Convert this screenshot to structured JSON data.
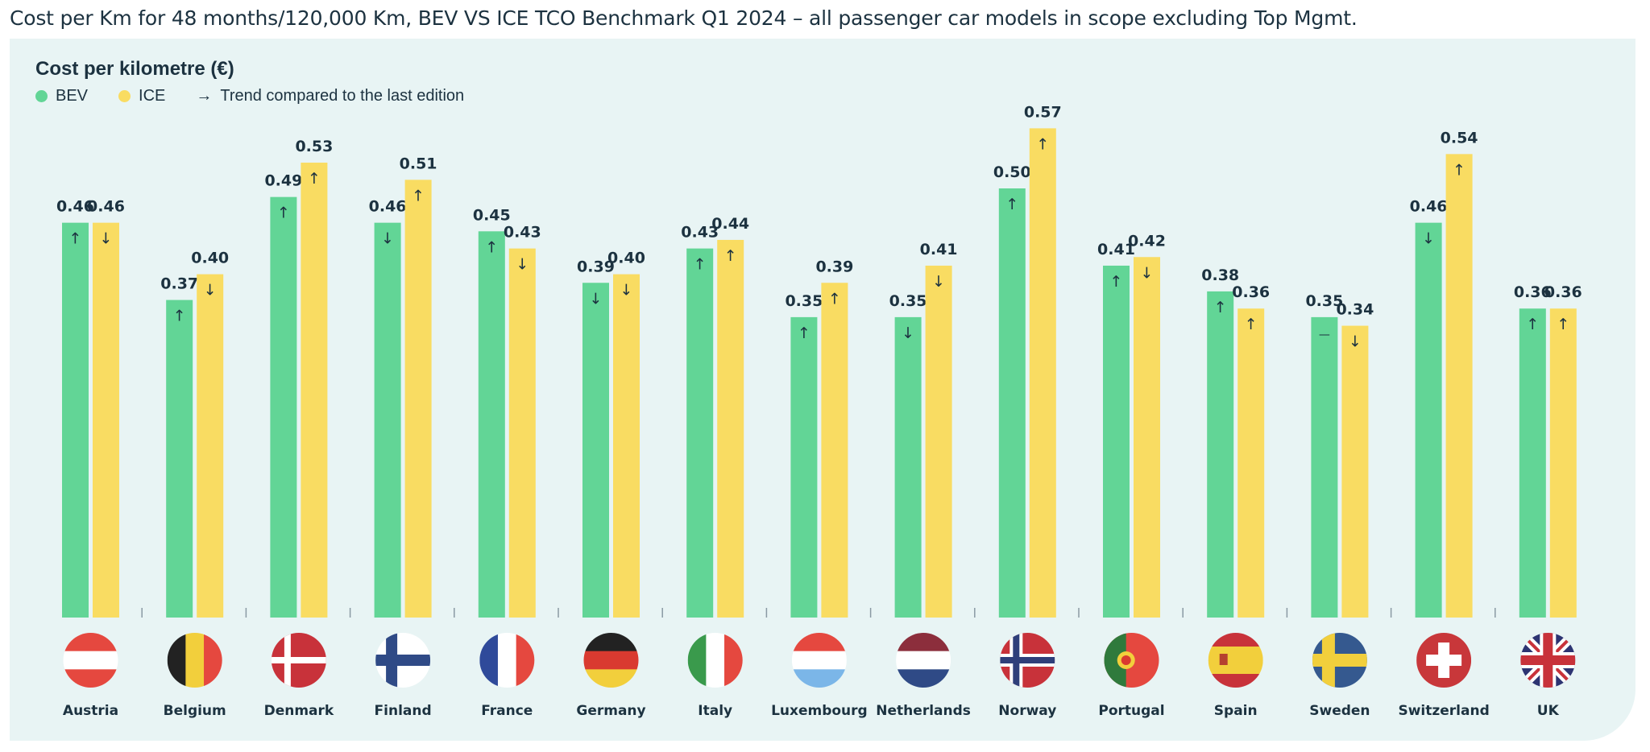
{
  "page_title": "Cost per Km for 48 months/120,000 Km, BEV VS ICE TCO Benchmark Q1 2024 – all passenger car models in scope excluding Top Mgmt.",
  "chart_data": {
    "type": "bar",
    "title": "Cost per kilometre (€)",
    "legend": {
      "placement": "top-left",
      "trend_note_icon": "arrow-right-icon",
      "trend_note": "Trend compared to the last edition"
    },
    "colors": {
      "BEV": "#62d596",
      "ICE": "#f9dc62",
      "text": "#1c3240",
      "background": "#e8f4f4"
    },
    "categories": [
      "Austria",
      "Belgium",
      "Denmark",
      "Finland",
      "France",
      "Germany",
      "Italy",
      "Luxembourg",
      "Netherlands",
      "Norway",
      "Portugal",
      "Spain",
      "Sweden",
      "Switzerland",
      "UK"
    ],
    "series": [
      {
        "name": "BEV",
        "values": [
          0.46,
          0.37,
          0.49,
          0.46,
          0.45,
          0.39,
          0.43,
          0.35,
          0.35,
          0.5,
          0.41,
          0.38,
          0.35,
          0.46,
          0.36
        ],
        "labels": [
          "0.46",
          "0.37",
          "0.49",
          "0.46",
          "0.45",
          "0.39",
          "0.43",
          "0.35",
          "0.35",
          "0.50",
          "0.41",
          "0.38",
          "0.35",
          "0.46",
          "0.36"
        ],
        "trend": [
          "up",
          "up",
          "up",
          "down",
          "up",
          "down",
          "up",
          "up",
          "down",
          "up",
          "up",
          "up",
          "flat",
          "down",
          "up"
        ]
      },
      {
        "name": "ICE",
        "values": [
          0.46,
          0.4,
          0.53,
          0.51,
          0.43,
          0.4,
          0.44,
          0.39,
          0.41,
          0.57,
          0.42,
          0.36,
          0.34,
          0.54,
          0.36
        ],
        "labels": [
          "0.46",
          "0.40",
          "0.53",
          "0.51",
          "0.43",
          "0.40",
          "0.44",
          "0.39",
          "0.41",
          "0.57",
          "0.42",
          "0.36",
          "0.34",
          "0.54",
          "0.36"
        ],
        "trend": [
          "down",
          "down",
          "up",
          "up",
          "down",
          "down",
          "up",
          "up",
          "down",
          "up",
          "down",
          "up",
          "down",
          "up",
          "up"
        ]
      }
    ],
    "ylim": [
      0,
      0.6
    ],
    "grid": false,
    "category_icons": [
      "flag-austria",
      "flag-belgium",
      "flag-denmark",
      "flag-finland",
      "flag-france",
      "flag-germany",
      "flag-italy",
      "flag-luxembourg",
      "flag-netherlands",
      "flag-norway",
      "flag-portugal",
      "flag-spain",
      "flag-sweden",
      "flag-switzerland",
      "flag-uk"
    ]
  }
}
